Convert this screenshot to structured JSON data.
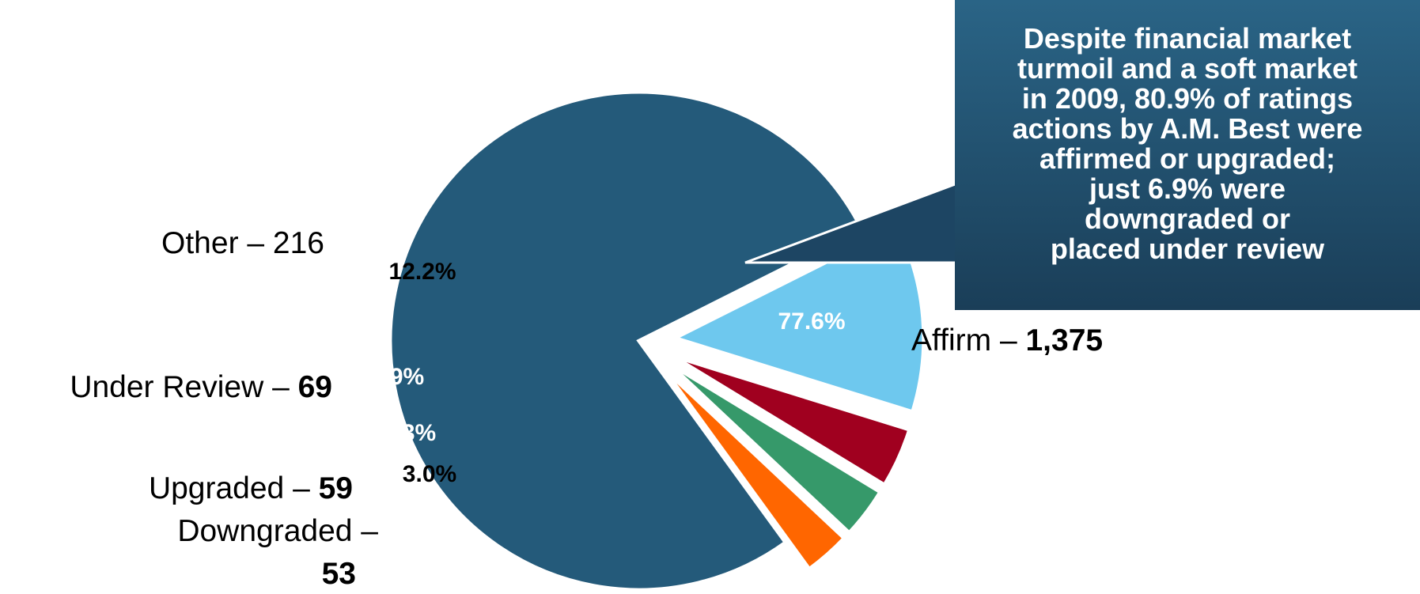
{
  "chart_data": {
    "type": "pie",
    "title": "",
    "slices": [
      {
        "name": "Affirm",
        "count": "1,375",
        "percent": 77.6,
        "percent_label": "77.6%",
        "color": "#245a7a",
        "label_color": "#ffffff",
        "bold_value": true
      },
      {
        "name": "Other",
        "count": "216",
        "percent": 12.2,
        "percent_label": "12.2%",
        "color": "#6ec8ee",
        "label_color": "#000000",
        "bold_value": false
      },
      {
        "name": "Under Review",
        "count": "69",
        "percent": 3.9,
        "percent_label": "3.9%",
        "color": "#a0001f",
        "label_color": "#ffffff",
        "bold_value": true
      },
      {
        "name": "Upgraded",
        "count": "59",
        "percent": 3.3,
        "percent_label": "3.3%",
        "color": "#36996a",
        "label_color": "#ffffff",
        "bold_value": true
      },
      {
        "name": "Downgraded",
        "count": "53",
        "percent": 3.0,
        "percent_label": "3.0%",
        "color": "#ff6600",
        "label_color": "#000000",
        "bold_value": true
      }
    ],
    "separator": "–"
  },
  "callout": {
    "lines": [
      "Despite financial market",
      "turmoil and a soft market",
      "in 2009, 80.9% of ratings",
      "actions by A.M. Best were",
      "affirmed or upgraded;",
      "just 6.9% were",
      "downgraded or",
      "placed under review"
    ],
    "color_top": "#2a6486",
    "color_bottom": "#1a3e58"
  }
}
